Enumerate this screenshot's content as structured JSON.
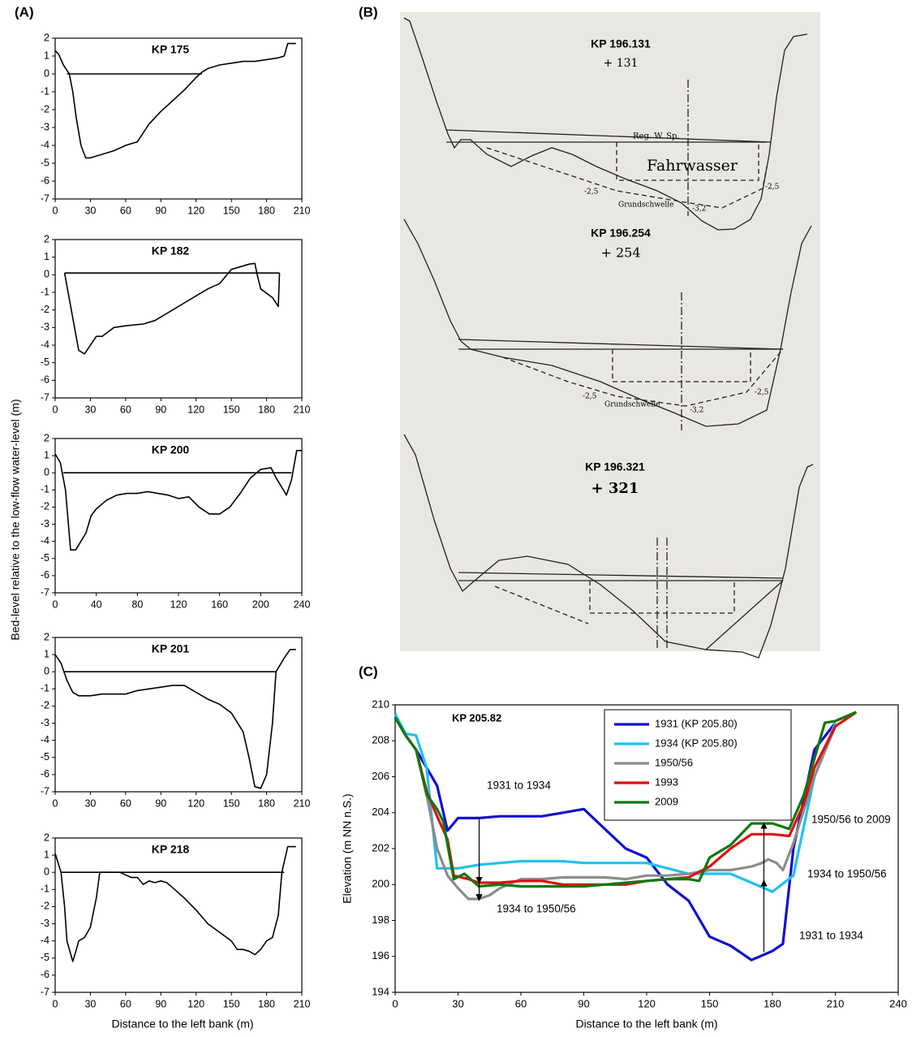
{
  "panel_labels": [
    "(A)",
    "(B)",
    "(C)"
  ],
  "panel_a": {
    "ylabel": "Bed-level relative to the low-flow water-level (m)",
    "xlabel": "Distance to the left bank (m)"
  },
  "panel_b": {
    "sections": [
      {
        "title": "KP 196.131",
        "subtitle": "+ 131",
        "notes": [
          "Reg. W. Sp.",
          "Fahrwasser",
          "Grundschwelle",
          "-2,5",
          "-3,2",
          "-2,5"
        ]
      },
      {
        "title": "KP 196.254",
        "subtitle": "+ 254",
        "notes": [
          "Grundschwelle",
          "-2,5",
          "-3,2",
          "-2,5"
        ]
      },
      {
        "title": "KP 196.321",
        "subtitle": "+ 321"
      }
    ]
  },
  "chart_data": [
    {
      "type": "line",
      "title": "KP 175",
      "color": "#000000",
      "x": [
        0,
        3,
        7,
        12,
        15,
        18,
        22,
        26,
        30,
        40,
        50,
        60,
        70,
        80,
        90,
        100,
        110,
        120,
        125,
        130,
        140,
        150,
        160,
        170,
        180,
        190,
        195,
        198,
        205
      ],
      "values": [
        1.3,
        1.1,
        0.5,
        0,
        -1,
        -2.5,
        -4,
        -4.7,
        -4.7,
        -4.5,
        -4.3,
        -4,
        -3.8,
        -2.8,
        -2.1,
        -1.5,
        -0.9,
        -0.2,
        0.1,
        0.3,
        0.5,
        0.6,
        0.7,
        0.7,
        0.8,
        0.9,
        1,
        1.7,
        1.7
      ],
      "hline": {
        "y": 0,
        "x": [
          10,
          125
        ]
      },
      "xlim": [
        0,
        210
      ],
      "xticks": [
        0,
        30,
        60,
        90,
        120,
        150,
        180,
        210
      ],
      "ylim": [
        -7,
        2
      ],
      "yticks": [
        -7,
        -6,
        -5,
        -4,
        -3,
        -2,
        -1,
        0,
        1,
        2
      ]
    },
    {
      "type": "line",
      "title": "KP 182",
      "color": "#000000",
      "x": [
        8,
        20,
        25,
        35,
        40,
        50,
        60,
        75,
        85,
        95,
        100,
        110,
        120,
        130,
        140,
        150,
        155,
        165,
        170,
        172,
        175,
        185,
        190,
        191
      ],
      "values": [
        0.1,
        -4.3,
        -4.5,
        -3.5,
        -3.5,
        -3,
        -2.9,
        -2.8,
        -2.6,
        -2.2,
        -2,
        -1.6,
        -1.2,
        -0.8,
        -0.5,
        0.3,
        0.4,
        0.6,
        0.65,
        0,
        -0.8,
        -1.3,
        -1.8,
        0.1
      ],
      "hline": {
        "y": 0.1,
        "x": [
          8,
          191
        ]
      },
      "xlim": [
        0,
        210
      ],
      "xticks": [
        0,
        30,
        60,
        90,
        120,
        150,
        180,
        210
      ],
      "ylim": [
        -7,
        2
      ],
      "yticks": [
        -7,
        -6,
        -5,
        -4,
        -3,
        -2,
        -1,
        0,
        1,
        2
      ]
    },
    {
      "type": "line",
      "title": "KP 200",
      "color": "#000000",
      "x": [
        0,
        5,
        10,
        15,
        20,
        25,
        30,
        35,
        40,
        50,
        60,
        70,
        80,
        90,
        100,
        110,
        120,
        130,
        140,
        150,
        160,
        170,
        180,
        190,
        200,
        210,
        215,
        220,
        225,
        230,
        235,
        240
      ],
      "values": [
        1.1,
        0.6,
        -1,
        -4.5,
        -4.5,
        -4,
        -3.5,
        -2.5,
        -2.1,
        -1.6,
        -1.3,
        -1.2,
        -1.2,
        -1.1,
        -1.2,
        -1.3,
        -1.5,
        -1.4,
        -2,
        -2.4,
        -2.4,
        -2,
        -1.2,
        -0.3,
        0.2,
        0.3,
        -0.3,
        -0.8,
        -1.3,
        -0.4,
        1.3,
        1.3
      ],
      "hline": {
        "y": 0,
        "x": [
          8,
          230
        ]
      },
      "xlim": [
        0,
        240
      ],
      "xticks": [
        0,
        40,
        80,
        120,
        160,
        200,
        240
      ],
      "ylim": [
        -7,
        2
      ],
      "yticks": [
        -7,
        -6,
        -5,
        -4,
        -3,
        -2,
        -1,
        0,
        1,
        2
      ]
    },
    {
      "type": "line",
      "title": "KP 201",
      "color": "#000000",
      "x": [
        0,
        5,
        10,
        15,
        20,
        30,
        40,
        50,
        60,
        70,
        80,
        90,
        100,
        110,
        120,
        130,
        140,
        150,
        160,
        165,
        170,
        175,
        180,
        185,
        188,
        195,
        200,
        205
      ],
      "values": [
        1,
        0.5,
        -0.5,
        -1.2,
        -1.4,
        -1.4,
        -1.3,
        -1.3,
        -1.3,
        -1.1,
        -1,
        -0.9,
        -0.8,
        -0.8,
        -1.2,
        -1.6,
        -1.9,
        -2.4,
        -3.5,
        -5,
        -6.7,
        -6.8,
        -6,
        -3,
        0,
        0.8,
        1.3,
        1.3
      ],
      "hline": {
        "y": 0,
        "x": [
          8,
          188
        ]
      },
      "xlim": [
        0,
        210
      ],
      "xticks": [
        0,
        30,
        60,
        90,
        120,
        150,
        180,
        210
      ],
      "ylim": [
        -7,
        2
      ],
      "yticks": [
        -7,
        -6,
        -5,
        -4,
        -3,
        -2,
        -1,
        0,
        1,
        2
      ]
    },
    {
      "type": "line",
      "title": "KP 218",
      "color": "#000000",
      "x": [
        0,
        5,
        8,
        10,
        15,
        18,
        20,
        25,
        30,
        35,
        38,
        45,
        55,
        65,
        70,
        75,
        80,
        85,
        90,
        95,
        100,
        110,
        120,
        130,
        140,
        150,
        155,
        160,
        165,
        170,
        175,
        180,
        185,
        190,
        193,
        198,
        205
      ],
      "values": [
        1.1,
        0,
        -2,
        -4,
        -5.2,
        -4.5,
        -4,
        -3.8,
        -3.2,
        -1.5,
        0,
        0,
        0,
        -0.3,
        -0.3,
        -0.7,
        -0.5,
        -0.6,
        -0.5,
        -0.6,
        -0.9,
        -1.5,
        -2.2,
        -3,
        -3.5,
        -4,
        -4.5,
        -4.5,
        -4.6,
        -4.8,
        -4.5,
        -4,
        -3.8,
        -2.5,
        0,
        1.5,
        1.5
      ],
      "hline": {
        "y": 0,
        "x": [
          5,
          195
        ]
      },
      "xlim": [
        0,
        210
      ],
      "xticks": [
        0,
        30,
        60,
        90,
        120,
        150,
        180,
        210
      ],
      "ylim": [
        -7,
        2
      ],
      "yticks": [
        -7,
        -6,
        -5,
        -4,
        -3,
        -2,
        -1,
        0,
        1,
        2
      ]
    },
    {
      "type": "line",
      "title": "KP 205.82",
      "xlabel": "Distance to the left bank (m)",
      "ylabel": "Elevation (m NN n.S.)",
      "legend": "upper right",
      "annotations": [
        "1931 to 1934",
        "1934 to 1950/56",
        "1950/56 to 2009",
        "1934 to 1950/56",
        "1931 to 1934"
      ],
      "xlim": [
        0,
        240
      ],
      "xticks": [
        0,
        30,
        60,
        90,
        120,
        150,
        180,
        210,
        240
      ],
      "ylim": [
        194,
        210
      ],
      "yticks": [
        194,
        196,
        198,
        200,
        202,
        204,
        206,
        208,
        210
      ],
      "series": [
        {
          "name": "1931 (KP 205.80)",
          "color": "#1010d0",
          "x": [
            0,
            5,
            10,
            15,
            20,
            25,
            30,
            40,
            50,
            60,
            70,
            80,
            90,
            100,
            110,
            120,
            130,
            140,
            150,
            160,
            170,
            180,
            185,
            190,
            200,
            210
          ],
          "values": [
            209.5,
            208.3,
            207.5,
            206.5,
            205.5,
            203,
            203.7,
            203.7,
            203.8,
            203.8,
            203.8,
            204,
            204.2,
            203.1,
            202,
            201.5,
            200,
            199.1,
            197.1,
            196.6,
            195.8,
            196.3,
            196.7,
            202,
            207.5,
            209
          ]
        },
        {
          "name": "1934 (KP 205.80)",
          "color": "#20c0f0",
          "x": [
            0,
            5,
            10,
            15,
            20,
            30,
            40,
            50,
            60,
            70,
            80,
            90,
            100,
            110,
            120,
            130,
            140,
            150,
            160,
            170,
            180,
            190,
            200,
            210
          ],
          "values": [
            209.5,
            208.4,
            208.3,
            206.5,
            200.9,
            200.9,
            201.1,
            201.2,
            201.3,
            201.3,
            201.3,
            201.2,
            201.2,
            201.2,
            201.2,
            200.9,
            200.6,
            200.6,
            200.6,
            200.1,
            199.6,
            200.5,
            206,
            209
          ]
        },
        {
          "name": "1950/56",
          "color": "#8c8c8c",
          "x": [
            0,
            5,
            10,
            15,
            20,
            25,
            30,
            35,
            40,
            45,
            50,
            60,
            70,
            80,
            90,
            100,
            110,
            120,
            130,
            140,
            150,
            160,
            170,
            175,
            178,
            182,
            185,
            190,
            200,
            210,
            220
          ],
          "values": [
            209.3,
            208.3,
            207.5,
            205,
            202,
            200.5,
            199.8,
            199.2,
            199.2,
            199.4,
            199.8,
            200.3,
            200.3,
            200.4,
            200.4,
            200.4,
            200.3,
            200.5,
            200.5,
            200.6,
            200.8,
            200.8,
            201,
            201.2,
            201.4,
            201.2,
            200.8,
            202.3,
            206,
            208.8,
            209.6
          ]
        },
        {
          "name": "1993",
          "color": "#e01010",
          "x": [
            0,
            5,
            10,
            15,
            20,
            25,
            28,
            35,
            40,
            50,
            60,
            70,
            80,
            90,
            100,
            110,
            120,
            130,
            140,
            150,
            160,
            170,
            180,
            188,
            195,
            200,
            210,
            220
          ],
          "values": [
            209.3,
            208.3,
            207.5,
            205.2,
            203.8,
            202.5,
            200.5,
            200.3,
            200.1,
            200.1,
            200.2,
            200.2,
            200,
            200,
            200,
            200,
            200.2,
            200.3,
            200.4,
            201,
            202,
            202.8,
            202.8,
            202.7,
            204.5,
            206.5,
            208.8,
            209.6
          ]
        },
        {
          "name": "2009",
          "color": "#107810",
          "x": [
            0,
            5,
            10,
            15,
            20,
            23,
            28,
            33,
            40,
            50,
            60,
            70,
            80,
            90,
            100,
            110,
            120,
            130,
            140,
            145,
            150,
            160,
            170,
            180,
            188,
            195,
            200,
            205,
            210,
            220
          ],
          "values": [
            209.3,
            208.3,
            207.5,
            205,
            204.2,
            203.5,
            200.3,
            200.6,
            199.9,
            200,
            199.9,
            199.9,
            199.9,
            199.9,
            200,
            200.1,
            200.2,
            200.3,
            200.3,
            200.2,
            201.5,
            202.2,
            203.4,
            203.4,
            203.1,
            205,
            207,
            209,
            209.1,
            209.6
          ]
        }
      ]
    }
  ]
}
